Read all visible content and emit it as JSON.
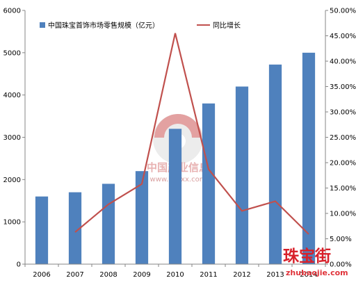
{
  "chart_data": {
    "type": "bar+line",
    "categories": [
      "2006",
      "2007",
      "2008",
      "2009",
      "2010",
      "2011",
      "2012",
      "2013",
      "2014"
    ],
    "series": [
      {
        "name": "中国珠宝首饰市场零售规模（亿元）",
        "type": "bar",
        "axis": "left",
        "values": [
          1600,
          1700,
          1900,
          2200,
          3200,
          3800,
          4200,
          4720,
          5000
        ]
      },
      {
        "name": "同比增长",
        "type": "line",
        "axis": "right",
        "values": [
          null,
          0.063,
          0.118,
          0.158,
          0.455,
          0.187,
          0.105,
          0.124,
          0.059
        ]
      }
    ],
    "y_left": {
      "min": 0,
      "max": 6000,
      "step": 1000,
      "ticks": [
        "0",
        "1000",
        "2000",
        "3000",
        "4000",
        "5000",
        "6000"
      ]
    },
    "y_right": {
      "min": 0,
      "max": 0.5,
      "step": 0.05,
      "ticks": [
        "0.00%",
        "5.00%",
        "10.00%",
        "15.00%",
        "20.00%",
        "25.00%",
        "30.00%",
        "35.00%",
        "40.00%",
        "45.00%",
        "50.00%"
      ]
    },
    "legend_position": "top-left",
    "grid": false
  },
  "colors": {
    "bar": "#4f81bd",
    "line": "#c0504d",
    "axis": "#868686"
  },
  "watermark": {
    "text": "中国产业信息",
    "url": "www.chyxx.com"
  },
  "logo": {
    "text_cn": "珠宝街",
    "text_en": "zhubaojie.com"
  }
}
